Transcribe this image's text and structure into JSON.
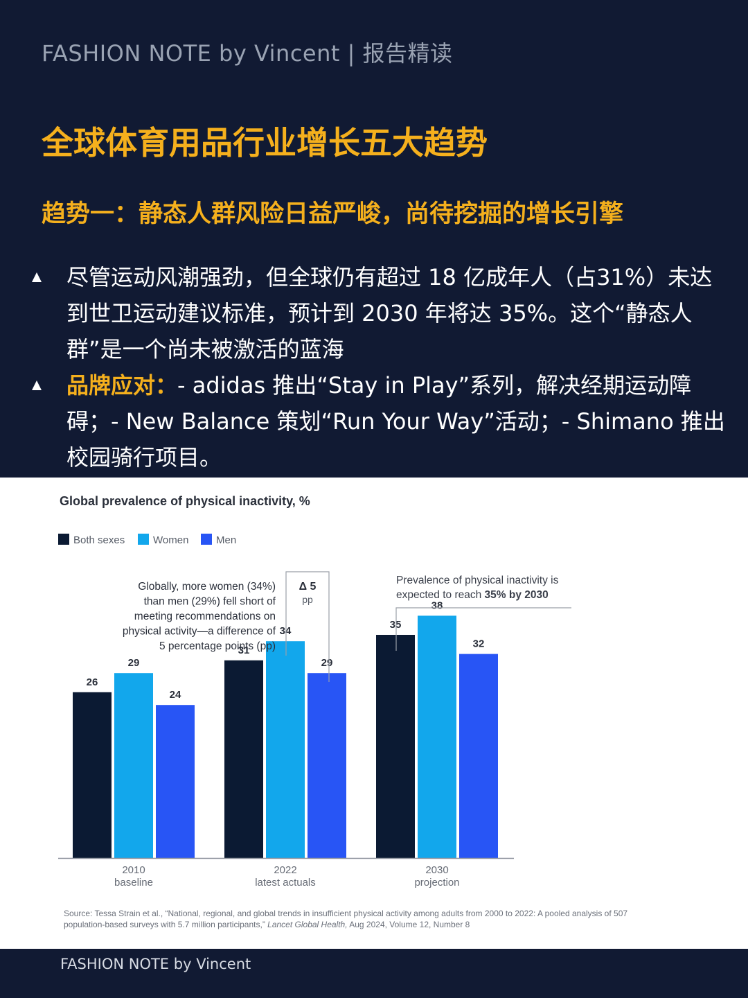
{
  "header": {
    "text": "FASHION NOTE by Vincent | 报告精读"
  },
  "title": "全球体育用品行业增长五大趋势",
  "subtitle": "趋势一：静态人群风险日益严峻，尚待挖掘的增长引擎",
  "bullets": [
    {
      "text": "尽管运动风潮强劲，但全球仍有超过 18 亿成年人（占31%）未达到世卫运动建议标准，预计到 2030 年将达 35%。这个“静态人群”是一个尚未被激活的蓝海"
    },
    {
      "label": "品牌应对：",
      "text": "- adidas 推出“Stay in Play”系列，解决经期运动障碍；- New Balance 策划“Run Your Way”活动；- Shimano 推出校园骑行项目。"
    }
  ],
  "chart_data": {
    "type": "bar",
    "title": "Global prevalence of physical inactivity, %",
    "categories": [
      {
        "line1": "2010",
        "line2": "baseline"
      },
      {
        "line1": "2022",
        "line2": "latest actuals"
      },
      {
        "line1": "2030",
        "line2": "projection"
      }
    ],
    "series": [
      {
        "name": "Both sexes",
        "color": "#0b1a33",
        "values": [
          26,
          31,
          35
        ]
      },
      {
        "name": "Women",
        "color": "#12a7ec",
        "values": [
          29,
          34,
          38
        ]
      },
      {
        "name": "Men",
        "color": "#2855f5",
        "values": [
          24,
          29,
          32
        ]
      }
    ],
    "ylim": [
      0,
      40
    ],
    "annotations": {
      "women_men_gap": [
        "Globally, more women (34%)",
        "than men (29%) fell short of",
        "meeting recommendations on",
        "physical activity—a difference of",
        "5 percentage points (pp)"
      ],
      "delta_value": "Δ 5",
      "delta_unit": "pp",
      "projection_line1": "Prevalence of physical inactivity is",
      "projection_line2_prefix": "expected to reach ",
      "projection_line2_bold": "35% by 2030"
    },
    "source_line1": "Source: Tessa Strain et al., “National, regional, and global trends in insufficient physical activity among adults from 2000 to 2022: A pooled analysis of 507",
    "source_line2_prefix": "population-based surveys with 5.7 million participants,” ",
    "source_line2_italic": "Lancet Global Health,",
    "source_line2_suffix": " Aug 2024, Volume 12, Number 8"
  },
  "footer": {
    "text": "FASHION NOTE by Vincent"
  }
}
